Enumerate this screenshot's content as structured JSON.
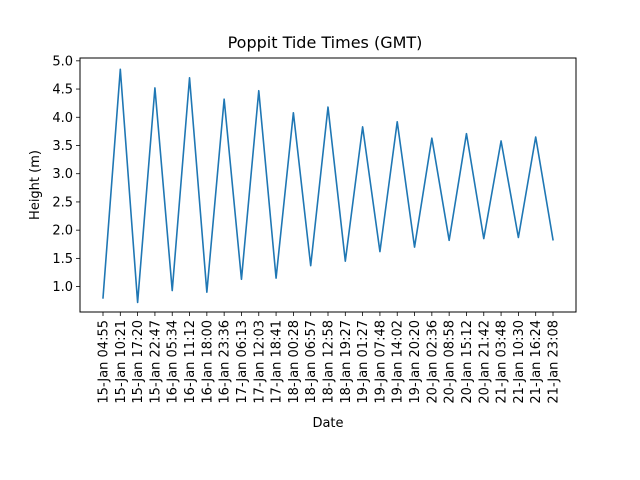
{
  "chart_data": {
    "type": "line",
    "title": "Poppit Tide Times (GMT)",
    "xlabel": "Date",
    "ylabel": "Height (m)",
    "ylim": [
      0.55,
      5.05
    ],
    "yticks": [
      1.0,
      1.5,
      2.0,
      2.5,
      3.0,
      3.5,
      4.0,
      4.5,
      5.0
    ],
    "grid": false,
    "legend": "none",
    "series": [
      {
        "color": "#1f77b4",
        "x": [
          "15-Jan 04:55",
          "15-Jan 10:21",
          "15-Jan 17:20",
          "15-Jan 22:47",
          "16-Jan 05:34",
          "16-Jan 11:12",
          "16-Jan 18:00",
          "16-Jan 23:36",
          "17-Jan 06:13",
          "17-Jan 12:03",
          "17-Jan 18:41",
          "18-Jan 00:28",
          "18-Jan 06:57",
          "18-Jan 12:58",
          "18-Jan 19:27",
          "19-Jan 01:27",
          "19-Jan 07:48",
          "19-Jan 14:02",
          "19-Jan 20:20",
          "20-Jan 02:36",
          "20-Jan 08:58",
          "20-Jan 15:12",
          "20-Jan 21:42",
          "21-Jan 03:48",
          "21-Jan 10:30",
          "21-Jan 16:24",
          "21-Jan 23:08"
        ],
        "values": [
          0.8,
          4.85,
          0.72,
          4.52,
          0.93,
          4.7,
          0.9,
          4.32,
          1.13,
          4.47,
          1.15,
          4.08,
          1.37,
          4.18,
          1.45,
          3.83,
          1.62,
          3.92,
          1.7,
          3.63,
          1.82,
          3.71,
          1.85,
          3.58,
          1.87,
          3.65,
          1.83
        ]
      }
    ]
  }
}
